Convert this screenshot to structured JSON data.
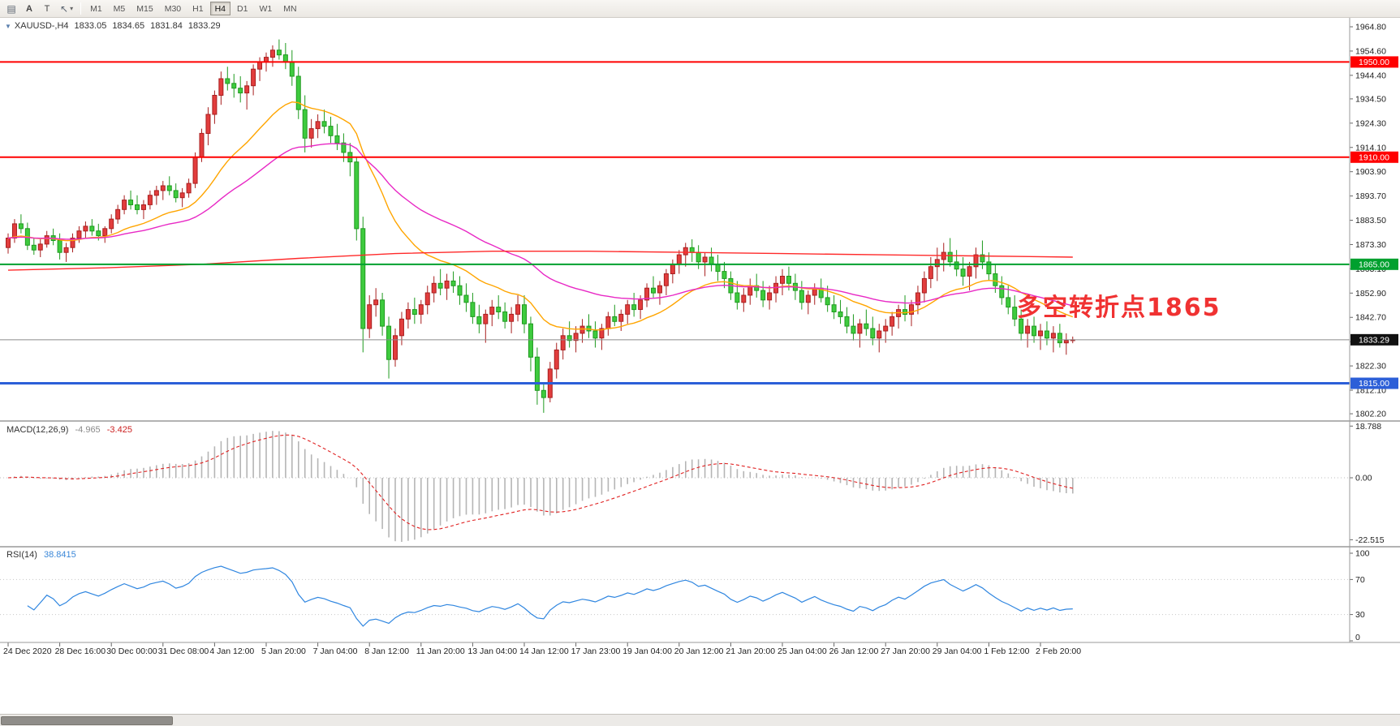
{
  "toolbar": {
    "chart_icon": {
      "name": "chart-type-icon",
      "glyph": "▤"
    },
    "a_button": {
      "label": "A"
    },
    "t_button": {
      "label": "T"
    },
    "cursor_button": {
      "name": "cursor-tool-icon",
      "glyph": "↖",
      "caret": "▾"
    },
    "timeframes": [
      {
        "label": "M1",
        "active": false
      },
      {
        "label": "M5",
        "active": false
      },
      {
        "label": "M15",
        "active": false
      },
      {
        "label": "M30",
        "active": false
      },
      {
        "label": "H1",
        "active": false
      },
      {
        "label": "H4",
        "active": true
      },
      {
        "label": "D1",
        "active": false
      },
      {
        "label": "W1",
        "active": false
      },
      {
        "label": "MN",
        "active": false
      }
    ]
  },
  "chart_header": {
    "expander_icon": "▼",
    "symbol_period": "XAUUSD-,H4",
    "open": "1833.05",
    "high": "1834.65",
    "low": "1831.84",
    "close": "1833.29"
  },
  "annotation": {
    "text": "多空转折点1865",
    "color": "#f03232"
  },
  "indicators": {
    "macd": {
      "title": "MACD(12,26,9)",
      "main_value": "-4.965",
      "signal_value": "-3.425",
      "params": [
        12,
        26,
        9
      ],
      "histogram_color": "#b5b5b5",
      "signal_color": "#e02020",
      "ticks": [
        {
          "label": "18.788",
          "value": 18.788
        },
        {
          "label": "0.00",
          "value": 0
        },
        {
          "label": "-22.515",
          "value": -22.515
        }
      ]
    },
    "rsi": {
      "title": "RSI(14)",
      "value": "38.8415",
      "period": 14,
      "line_color": "#2f86e0",
      "levels": [
        70,
        30
      ],
      "ticks": [
        {
          "label": "100",
          "value": 100
        },
        {
          "label": "70",
          "value": 70
        },
        {
          "label": "30",
          "value": 30
        },
        {
          "label": "0",
          "value": 0
        }
      ]
    }
  },
  "chart_data": {
    "type": "candlestick",
    "symbol": "XAUUSD-",
    "timeframe": "H4",
    "price_range": [
      1802.2,
      1964.8
    ],
    "y_tick_labels": [
      "1964.80",
      "1954.60",
      "1944.40",
      "1934.50",
      "1924.30",
      "1914.10",
      "1903.90",
      "1893.70",
      "1883.50",
      "1873.30",
      "1863.10",
      "1852.90",
      "1842.70",
      "1832.50",
      "1822.30",
      "1812.10",
      "1802.20"
    ],
    "horizontal_lines": [
      {
        "label": "1950.00",
        "price": 1950.0,
        "color": "#ff0000",
        "width": 2
      },
      {
        "label": "1910.00",
        "price": 1910.0,
        "color": "#ff0000",
        "width": 2
      },
      {
        "label": "1865.00",
        "price": 1865.0,
        "color": "#00a02e",
        "width": 2
      },
      {
        "label": "1815.00",
        "price": 1815.0,
        "color": "#2c5fd8",
        "width": 3
      }
    ],
    "bid": {
      "label": "1833.29",
      "price": 1833.29
    },
    "candle_colors": {
      "bull_fill": "#e23d3d",
      "bull_border": "#a81f1f",
      "bear_fill": "#3ecb3e",
      "bear_border": "#1f9a1f"
    },
    "moving_averages": [
      {
        "name": "fast",
        "type": "ema",
        "period": 20,
        "color": "#ffa500"
      },
      {
        "name": "medium",
        "type": "ema",
        "period": 45,
        "color": "#e829c5"
      },
      {
        "name": "slow",
        "color": "#ff2a2a",
        "points": [
          [
            0,
            1862.5
          ],
          [
            15,
            1863.5
          ],
          [
            30,
            1865.0
          ],
          [
            45,
            1867.5
          ],
          [
            60,
            1869.5
          ],
          [
            75,
            1870.5
          ],
          [
            90,
            1870.5
          ],
          [
            105,
            1870.0
          ],
          [
            120,
            1869.5
          ],
          [
            135,
            1869.0
          ],
          [
            150,
            1868.5
          ],
          [
            165,
            1868.0
          ]
        ]
      }
    ],
    "x_labels": [
      {
        "index": 0,
        "text": "24 Dec 2020"
      },
      {
        "index": 8,
        "text": "28 Dec 16:00"
      },
      {
        "index": 16,
        "text": "30 Dec 00:00"
      },
      {
        "index": 24,
        "text": "31 Dec 08:00"
      },
      {
        "index": 32,
        "text": "4 Jan 12:00"
      },
      {
        "index": 40,
        "text": "5 Jan 20:00"
      },
      {
        "index": 48,
        "text": "7 Jan 04:00"
      },
      {
        "index": 56,
        "text": "8 Jan 12:00"
      },
      {
        "index": 64,
        "text": "11 Jan 20:00"
      },
      {
        "index": 72,
        "text": "13 Jan 04:00"
      },
      {
        "index": 80,
        "text": "14 Jan 12:00"
      },
      {
        "index": 88,
        "text": "17 Jan 23:00"
      },
      {
        "index": 96,
        "text": "19 Jan 04:00"
      },
      {
        "index": 104,
        "text": "20 Jan 12:00"
      },
      {
        "index": 112,
        "text": "21 Jan 20:00"
      },
      {
        "index": 120,
        "text": "25 Jan 04:00"
      },
      {
        "index": 128,
        "text": "26 Jan 12:00"
      },
      {
        "index": 136,
        "text": "27 Jan 20:00"
      },
      {
        "index": 144,
        "text": "29 Jan 04:00"
      },
      {
        "index": 152,
        "text": "1 Feb 12:00"
      },
      {
        "index": 160,
        "text": "2 Feb 20:00"
      }
    ],
    "candles": [
      [
        1872.0,
        1878.0,
        1869.5,
        1876.0
      ],
      [
        1876.0,
        1884.0,
        1874.0,
        1882.0
      ],
      [
        1882.0,
        1886.0,
        1878.0,
        1880.0
      ],
      [
        1880.0,
        1882.5,
        1871.0,
        1873.0
      ],
      [
        1873.0,
        1876.0,
        1869.0,
        1871.0
      ],
      [
        1871.0,
        1875.5,
        1868.0,
        1873.5
      ],
      [
        1873.5,
        1879.0,
        1872.0,
        1877.0
      ],
      [
        1877.0,
        1880.0,
        1873.0,
        1875.0
      ],
      [
        1875.0,
        1878.0,
        1867.0,
        1870.0
      ],
      [
        1870.0,
        1874.0,
        1866.0,
        1872.0
      ],
      [
        1872.0,
        1878.0,
        1870.0,
        1876.0
      ],
      [
        1876.0,
        1881.0,
        1874.0,
        1879.0
      ],
      [
        1879.0,
        1883.0,
        1876.0,
        1881.0
      ],
      [
        1881.0,
        1884.0,
        1877.0,
        1879.0
      ],
      [
        1879.0,
        1882.0,
        1875.0,
        1877.0
      ],
      [
        1877.0,
        1881.0,
        1874.0,
        1880.0
      ],
      [
        1880.0,
        1886.0,
        1878.0,
        1884.0
      ],
      [
        1884.0,
        1890.0,
        1882.0,
        1888.0
      ],
      [
        1888.0,
        1894.0,
        1886.0,
        1892.0
      ],
      [
        1892.0,
        1896.0,
        1888.0,
        1890.0
      ],
      [
        1890.0,
        1894.0,
        1886.0,
        1888.0
      ],
      [
        1888.0,
        1892.0,
        1884.0,
        1890.0
      ],
      [
        1890.0,
        1896.0,
        1888.0,
        1894.0
      ],
      [
        1894.0,
        1898.0,
        1890.0,
        1896.0
      ],
      [
        1896.0,
        1900.0,
        1892.0,
        1898.0
      ],
      [
        1898.0,
        1902.0,
        1894.0,
        1896.0
      ],
      [
        1896.0,
        1899.0,
        1891.0,
        1893.0
      ],
      [
        1893.0,
        1897.0,
        1889.0,
        1895.0
      ],
      [
        1895.0,
        1901.0,
        1893.0,
        1899.0
      ],
      [
        1899.0,
        1912.0,
        1897.0,
        1910.0
      ],
      [
        1910.0,
        1922.0,
        1908.0,
        1920.0
      ],
      [
        1920.0,
        1931.0,
        1915.0,
        1928.0
      ],
      [
        1928.0,
        1938.0,
        1924.0,
        1936.0
      ],
      [
        1936.0,
        1946.0,
        1932.0,
        1943.0
      ],
      [
        1943.0,
        1948.0,
        1938.0,
        1941.0
      ],
      [
        1941.0,
        1945.0,
        1935.0,
        1939.0
      ],
      [
        1939.0,
        1944.0,
        1933.0,
        1937.0
      ],
      [
        1937.0,
        1942.0,
        1930.0,
        1940.0
      ],
      [
        1940.0,
        1949.0,
        1936.0,
        1947.0
      ],
      [
        1947.0,
        1952.0,
        1942.0,
        1950.0
      ],
      [
        1950.0,
        1954.0,
        1946.0,
        1952.0
      ],
      [
        1952.0,
        1957.0,
        1948.0,
        1955.0
      ],
      [
        1955.0,
        1959.5,
        1951.0,
        1953.0
      ],
      [
        1953.0,
        1958.0,
        1947.0,
        1950.0
      ],
      [
        1950.0,
        1955.0,
        1940.0,
        1944.0
      ],
      [
        1944.0,
        1948.0,
        1926.0,
        1930.0
      ],
      [
        1930.0,
        1936.0,
        1912.0,
        1918.0
      ],
      [
        1918.0,
        1926.0,
        1914.0,
        1922.0
      ],
      [
        1922.0,
        1928.0,
        1918.0,
        1925.0
      ],
      [
        1925.0,
        1930.0,
        1920.0,
        1923.0
      ],
      [
        1923.0,
        1927.0,
        1916.0,
        1919.0
      ],
      [
        1919.0,
        1924.0,
        1913.0,
        1916.0
      ],
      [
        1916.0,
        1920.0,
        1908.0,
        1912.0
      ],
      [
        1912.0,
        1916.0,
        1902.0,
        1908.0
      ],
      [
        1908.0,
        1910.0,
        1875.0,
        1880.0
      ],
      [
        1880.0,
        1885.0,
        1828.0,
        1838.0
      ],
      [
        1838.0,
        1852.0,
        1834.0,
        1848.0
      ],
      [
        1848.0,
        1855.0,
        1843.0,
        1850.0
      ],
      [
        1850.0,
        1853.0,
        1835.0,
        1839.0
      ],
      [
        1839.0,
        1843.0,
        1817.0,
        1825.0
      ],
      [
        1825.0,
        1838.0,
        1822.0,
        1835.0
      ],
      [
        1835.0,
        1845.0,
        1831.0,
        1842.0
      ],
      [
        1842.0,
        1849.0,
        1838.0,
        1846.0
      ],
      [
        1846.0,
        1851.0,
        1840.0,
        1844.0
      ],
      [
        1844.0,
        1850.0,
        1840.0,
        1848.0
      ],
      [
        1848.0,
        1856.0,
        1844.0,
        1853.0
      ],
      [
        1853.0,
        1860.0,
        1849.0,
        1857.0
      ],
      [
        1857.0,
        1863.0,
        1852.0,
        1855.0
      ],
      [
        1855.0,
        1861.0,
        1850.0,
        1858.0
      ],
      [
        1858.0,
        1862.0,
        1853.0,
        1856.0
      ],
      [
        1856.0,
        1860.0,
        1848.0,
        1852.0
      ],
      [
        1852.0,
        1857.0,
        1845.0,
        1849.0
      ],
      [
        1849.0,
        1853.0,
        1840.0,
        1843.0
      ],
      [
        1843.0,
        1848.0,
        1836.0,
        1840.0
      ],
      [
        1840.0,
        1846.0,
        1832.0,
        1844.0
      ],
      [
        1844.0,
        1850.0,
        1839.0,
        1847.0
      ],
      [
        1847.0,
        1852.0,
        1842.0,
        1845.0
      ],
      [
        1845.0,
        1849.0,
        1838.0,
        1841.0
      ],
      [
        1841.0,
        1847.0,
        1836.0,
        1844.0
      ],
      [
        1844.0,
        1852.0,
        1841.0,
        1848.0
      ],
      [
        1848.0,
        1852.0,
        1836.0,
        1840.0
      ],
      [
        1840.0,
        1843.0,
        1820.0,
        1826.0
      ],
      [
        1826.0,
        1830.0,
        1806.0,
        1812.0
      ],
      [
        1812.0,
        1815.0,
        1802.6,
        1809.0
      ],
      [
        1809.0,
        1824.0,
        1807.0,
        1821.0
      ],
      [
        1821.0,
        1832.0,
        1817.0,
        1829.0
      ],
      [
        1829.0,
        1838.0,
        1825.0,
        1835.0
      ],
      [
        1835.0,
        1841.0,
        1830.0,
        1833.0
      ],
      [
        1833.0,
        1839.0,
        1828.0,
        1836.0
      ],
      [
        1836.0,
        1842.0,
        1832.0,
        1839.0
      ],
      [
        1839.0,
        1844.0,
        1834.0,
        1837.0
      ],
      [
        1837.0,
        1841.0,
        1830.0,
        1834.0
      ],
      [
        1834.0,
        1840.0,
        1829.0,
        1838.0
      ],
      [
        1838.0,
        1845.0,
        1835.0,
        1843.0
      ],
      [
        1843.0,
        1848.0,
        1839.0,
        1841.0
      ],
      [
        1841.0,
        1846.0,
        1837.0,
        1844.0
      ],
      [
        1844.0,
        1850.0,
        1840.0,
        1848.0
      ],
      [
        1848.0,
        1853.0,
        1843.0,
        1846.0
      ],
      [
        1846.0,
        1852.0,
        1842.0,
        1850.0
      ],
      [
        1850.0,
        1857.0,
        1847.0,
        1855.0
      ],
      [
        1855.0,
        1860.0,
        1851.0,
        1853.0
      ],
      [
        1853.0,
        1858.0,
        1848.0,
        1856.0
      ],
      [
        1856.0,
        1863.0,
        1852.0,
        1861.0
      ],
      [
        1861.0,
        1867.0,
        1857.0,
        1865.0
      ],
      [
        1865.0,
        1871.0,
        1861.0,
        1869.0
      ],
      [
        1869.0,
        1874.0,
        1864.0,
        1872.0
      ],
      [
        1872.0,
        1875.5,
        1866.0,
        1870.0
      ],
      [
        1870.0,
        1873.0,
        1863.0,
        1866.0
      ],
      [
        1866.0,
        1870.0,
        1860.0,
        1868.0
      ],
      [
        1868.0,
        1872.0,
        1862.0,
        1865.0
      ],
      [
        1865.0,
        1869.0,
        1858.0,
        1862.0
      ],
      [
        1862.0,
        1866.0,
        1855.0,
        1859.0
      ],
      [
        1859.0,
        1862.0,
        1850.0,
        1853.0
      ],
      [
        1853.0,
        1858.0,
        1846.0,
        1849.0
      ],
      [
        1849.0,
        1855.0,
        1845.0,
        1852.0
      ],
      [
        1852.0,
        1859.0,
        1848.0,
        1856.0
      ],
      [
        1856.0,
        1861.0,
        1851.0,
        1854.0
      ],
      [
        1854.0,
        1858.0,
        1847.0,
        1850.0
      ],
      [
        1850.0,
        1856.0,
        1846.0,
        1853.0
      ],
      [
        1853.0,
        1860.0,
        1849.0,
        1857.0
      ],
      [
        1857.0,
        1863.0,
        1852.0,
        1860.0
      ],
      [
        1860.0,
        1864.0,
        1854.0,
        1857.0
      ],
      [
        1857.0,
        1861.0,
        1850.0,
        1854.0
      ],
      [
        1854.0,
        1858.0,
        1846.0,
        1849.0
      ],
      [
        1849.0,
        1854.0,
        1844.0,
        1852.0
      ],
      [
        1852.0,
        1857.0,
        1848.0,
        1855.0
      ],
      [
        1855.0,
        1859.0,
        1849.0,
        1851.0
      ],
      [
        1851.0,
        1856.0,
        1845.0,
        1848.0
      ],
      [
        1848.0,
        1852.0,
        1842.0,
        1845.0
      ],
      [
        1845.0,
        1850.0,
        1840.0,
        1843.0
      ],
      [
        1843.0,
        1847.0,
        1836.0,
        1839.0
      ],
      [
        1839.0,
        1844.0,
        1833.0,
        1836.0
      ],
      [
        1836.0,
        1842.0,
        1830.0,
        1840.0
      ],
      [
        1840.0,
        1846.0,
        1835.0,
        1838.0
      ],
      [
        1838.0,
        1843.0,
        1831.0,
        1834.0
      ],
      [
        1834.0,
        1840.0,
        1828.0,
        1837.0
      ],
      [
        1837.0,
        1842.0,
        1832.0,
        1839.0
      ],
      [
        1839.0,
        1845.0,
        1835.0,
        1843.0
      ],
      [
        1843.0,
        1848.0,
        1838.0,
        1846.0
      ],
      [
        1846.0,
        1852.0,
        1841.0,
        1844.0
      ],
      [
        1844.0,
        1850.0,
        1839.0,
        1848.0
      ],
      [
        1848.0,
        1856.0,
        1844.0,
        1853.0
      ],
      [
        1853.0,
        1862.0,
        1849.0,
        1859.0
      ],
      [
        1859.0,
        1868.0,
        1855.0,
        1864.0
      ],
      [
        1864.0,
        1872.0,
        1858.0,
        1867.0
      ],
      [
        1867.0,
        1874.0,
        1862.0,
        1870.0
      ],
      [
        1870.0,
        1876.0,
        1864.0,
        1866.0
      ],
      [
        1866.0,
        1871.0,
        1860.0,
        1863.0
      ],
      [
        1863.0,
        1868.0,
        1856.0,
        1860.0
      ],
      [
        1860.0,
        1866.0,
        1854.0,
        1864.0
      ],
      [
        1864.0,
        1872.0,
        1859.0,
        1869.0
      ],
      [
        1869.0,
        1875.0,
        1863.0,
        1866.0
      ],
      [
        1866.0,
        1870.0,
        1858.0,
        1861.0
      ],
      [
        1861.0,
        1865.0,
        1853.0,
        1856.0
      ],
      [
        1856.0,
        1860.0,
        1848.0,
        1851.0
      ],
      [
        1851.0,
        1856.0,
        1844.0,
        1847.0
      ],
      [
        1847.0,
        1852.0,
        1839.0,
        1842.0
      ],
      [
        1842.0,
        1846.0,
        1833.0,
        1836.0
      ],
      [
        1836.0,
        1842.0,
        1830.0,
        1839.0
      ],
      [
        1839.0,
        1843.0,
        1832.0,
        1835.0
      ],
      [
        1835.0,
        1840.0,
        1829.0,
        1837.0
      ],
      [
        1837.0,
        1841.0,
        1831.0,
        1834.0
      ],
      [
        1834.0,
        1839.0,
        1828.0,
        1836.0
      ],
      [
        1836.0,
        1840.0,
        1830.0,
        1832.0
      ],
      [
        1832.0,
        1836.0,
        1827.0,
        1833.05
      ],
      [
        1833.05,
        1834.65,
        1831.84,
        1833.29
      ]
    ]
  }
}
